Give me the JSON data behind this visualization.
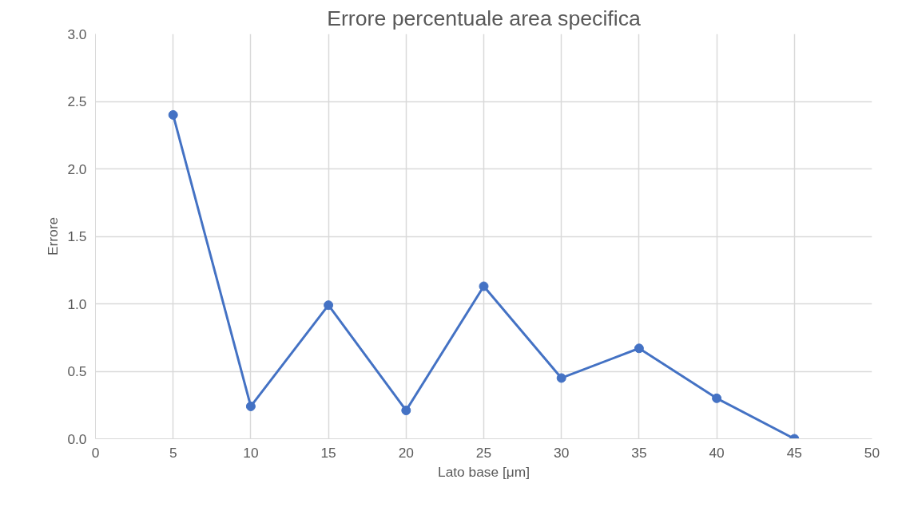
{
  "chart_data": {
    "type": "line",
    "title": "Errore percentuale area specifica",
    "xlabel": "Lato base [μm]",
    "ylabel": "Errore",
    "x": [
      5,
      10,
      15,
      20,
      25,
      30,
      35,
      40,
      45
    ],
    "series": [
      {
        "color": "#4472c4",
        "values": [
          2.4,
          0.24,
          0.99,
          0.21,
          1.13,
          0.45,
          0.67,
          0.3,
          0.0
        ]
      }
    ],
    "xlim": [
      0,
      50
    ],
    "xticks": [
      0,
      5,
      10,
      15,
      20,
      25,
      30,
      35,
      40,
      45,
      50
    ],
    "ylim": [
      0,
      3.0
    ],
    "yticks": [
      {
        "value": 0,
        "label": "0.0"
      },
      {
        "value": 0.5,
        "label": "0.5"
      },
      {
        "value": 1,
        "label": "1.0"
      },
      {
        "value": 1.5,
        "label": "1.5"
      },
      {
        "value": 2,
        "label": "2.0"
      },
      {
        "value": 2.5,
        "label": "2.5"
      },
      {
        "value": 3,
        "label": "3.0"
      }
    ],
    "grid": true,
    "marker": "circle",
    "line_style": "solid"
  }
}
